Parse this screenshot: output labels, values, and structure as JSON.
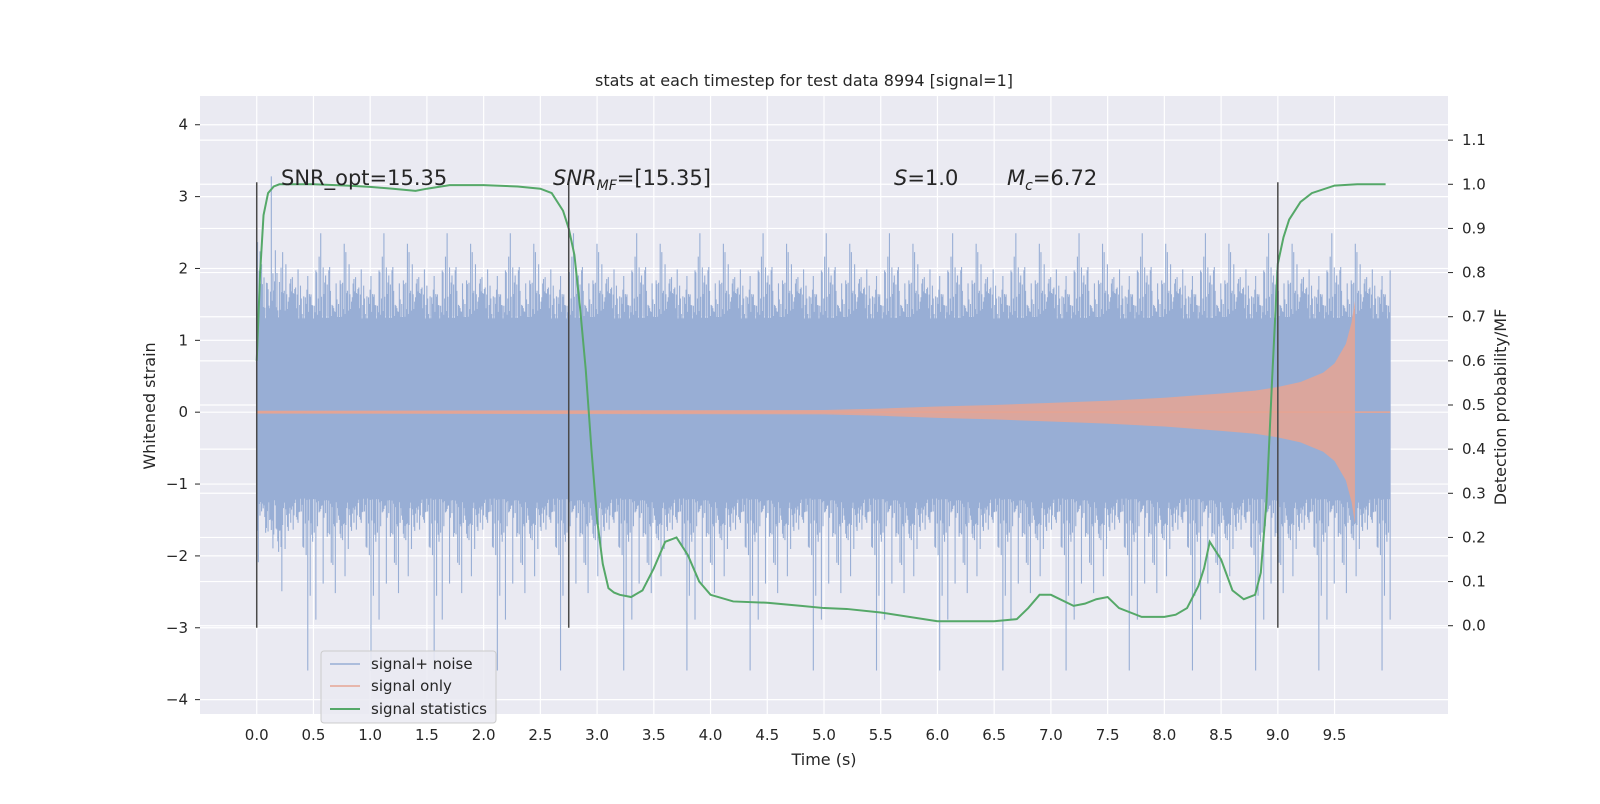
{
  "chart_data": {
    "type": "line",
    "title": "stats at each timestep for test data 8994 [signal=1]",
    "xlabel": "Time (s)",
    "ylabel_left": "Whitened strain",
    "ylabel_right": "Detection probability/MF",
    "xlim": [
      -0.5,
      10.5
    ],
    "ylim_left": [
      -4.2,
      4.4
    ],
    "ylim_right": [
      -0.2,
      1.2
    ],
    "x_ticks": [
      0.0,
      0.5,
      1.0,
      1.5,
      2.0,
      2.5,
      3.0,
      3.5,
      4.0,
      4.5,
      5.0,
      5.5,
      6.0,
      6.5,
      7.0,
      7.5,
      8.0,
      8.5,
      9.0,
      9.5
    ],
    "x_tick_labels": [
      "0.0",
      "0.5",
      "1.0",
      "1.5",
      "2.0",
      "2.5",
      "3.0",
      "3.5",
      "4.0",
      "4.5",
      "5.0",
      "5.5",
      "6.0",
      "6.5",
      "7.0",
      "7.5",
      "8.0",
      "8.5",
      "9.0",
      "9.5"
    ],
    "y_left_ticks": [
      4,
      3,
      2,
      1,
      0,
      -1,
      -2,
      -3,
      -4
    ],
    "y_left_tick_labels": [
      "4",
      "3",
      "2",
      "1",
      "0",
      "−1",
      "−2",
      "−3",
      "−4"
    ],
    "y_right_ticks": [
      1.1,
      1.0,
      0.9,
      0.8,
      0.7,
      0.6,
      0.5,
      0.4,
      0.3,
      0.2,
      0.1,
      0.0
    ],
    "y_right_tick_labels": [
      "1.1",
      "1.0",
      "0.9",
      "0.8",
      "0.7",
      "0.6",
      "0.5",
      "0.4",
      "0.3",
      "0.2",
      "0.1",
      "0.0"
    ],
    "grid": true,
    "legend_location": "lower-left",
    "colors": {
      "background": "#eaeaf2",
      "grid": "#ffffff",
      "noise": "#98aed5",
      "signal": "#e6a493",
      "statistic": "#55a868",
      "marker": "#4a4a4a"
    },
    "series": [
      {
        "name": "signal+ noise",
        "axis": "left",
        "description_of_shape": "dense noise band",
        "x_range": [
          0.0,
          9.99
        ],
        "band_core": [
          -1.2,
          1.3
        ],
        "extreme_range": [
          -3.9,
          4.05
        ]
      },
      {
        "name": "signal only",
        "axis": "left",
        "x_range": [
          0.0,
          9.68
        ],
        "envelope": {
          "t": [
            0.0,
            5.0,
            5.5,
            6.0,
            6.5,
            7.0,
            7.5,
            8.0,
            8.5,
            8.8,
            9.0,
            9.2,
            9.4,
            9.5,
            9.6,
            9.65,
            9.68
          ],
          "amp": [
            0.02,
            0.03,
            0.05,
            0.08,
            0.1,
            0.13,
            0.16,
            0.2,
            0.26,
            0.3,
            0.35,
            0.42,
            0.55,
            0.68,
            0.95,
            1.25,
            1.55
          ]
        }
      },
      {
        "name": "signal statistics",
        "axis": "right",
        "x": [
          0.0,
          0.03,
          0.06,
          0.1,
          0.15,
          0.2,
          0.3,
          0.5,
          0.8,
          1.0,
          1.2,
          1.4,
          1.5,
          1.7,
          2.0,
          2.3,
          2.5,
          2.6,
          2.7,
          2.75,
          2.8,
          2.85,
          2.9,
          2.95,
          3.0,
          3.05,
          3.1,
          3.15,
          3.2,
          3.3,
          3.4,
          3.5,
          3.6,
          3.7,
          3.8,
          3.9,
          4.0,
          4.2,
          4.5,
          4.8,
          5.0,
          5.2,
          5.5,
          6.0,
          6.5,
          6.7,
          6.8,
          6.9,
          7.0,
          7.2,
          7.3,
          7.4,
          7.5,
          7.6,
          7.8,
          8.0,
          8.1,
          8.2,
          8.3,
          8.35,
          8.4,
          8.5,
          8.6,
          8.7,
          8.8,
          8.85,
          8.9,
          8.95,
          9.0,
          9.05,
          9.1,
          9.2,
          9.3,
          9.5,
          9.7,
          9.95
        ],
        "y": [
          0.6,
          0.8,
          0.93,
          0.98,
          0.995,
          1.0,
          1.0,
          1.0,
          0.997,
          0.994,
          0.99,
          0.985,
          0.99,
          0.998,
          0.998,
          0.995,
          0.99,
          0.98,
          0.94,
          0.9,
          0.84,
          0.72,
          0.58,
          0.4,
          0.24,
          0.14,
          0.085,
          0.075,
          0.07,
          0.065,
          0.08,
          0.13,
          0.19,
          0.2,
          0.16,
          0.1,
          0.07,
          0.055,
          0.052,
          0.045,
          0.04,
          0.038,
          0.03,
          0.01,
          0.01,
          0.015,
          0.04,
          0.07,
          0.07,
          0.045,
          0.05,
          0.06,
          0.065,
          0.04,
          0.02,
          0.02,
          0.025,
          0.04,
          0.09,
          0.13,
          0.19,
          0.15,
          0.08,
          0.06,
          0.07,
          0.12,
          0.28,
          0.56,
          0.82,
          0.88,
          0.92,
          0.96,
          0.98,
          0.997,
          1.0,
          1.0
        ]
      }
    ],
    "vertical_markers": [
      {
        "x": 0.0,
        "y_range": [
          -3.0,
          3.2
        ]
      },
      {
        "x": 2.75,
        "y_range": [
          -3.0,
          3.2
        ]
      },
      {
        "x": 9.0,
        "y_range": [
          -3.0,
          3.2
        ]
      }
    ],
    "annotations": [
      {
        "id": "snr-opt",
        "text": "SNR_opt=15.35",
        "x": 0.2,
        "y": 3.1
      },
      {
        "id": "snr-mf",
        "base": "SNR",
        "sub": "MF",
        "rest": "=[15.35]",
        "x": 2.6,
        "y": 3.1
      },
      {
        "id": "s-value",
        "base": "S",
        "rest": "=1.0",
        "x": 5.6,
        "y": 3.1
      },
      {
        "id": "mc-value",
        "base": "M",
        "sub": "c",
        "rest": "=6.72",
        "x": 6.6,
        "y": 3.1
      }
    ]
  }
}
